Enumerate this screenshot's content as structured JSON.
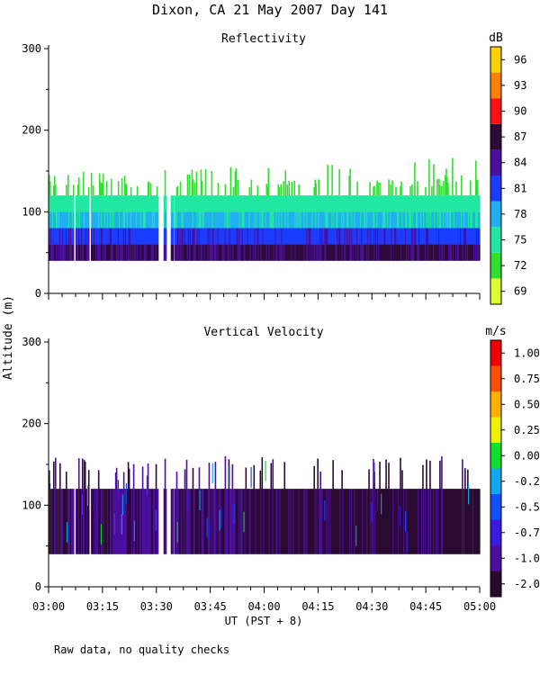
{
  "title": "Dixon, CA 21 May 2007  Day 141",
  "ylabel": "Altitude (m)",
  "xlabel": "UT  (PST + 8)",
  "footnote": "Raw data, no quality checks",
  "x_ticks": [
    "03:00",
    "03:15",
    "03:30",
    "03:45",
    "04:00",
    "04:15",
    "04:30",
    "04:45",
    "05:00"
  ],
  "x_range_minutes": [
    0,
    120
  ],
  "data_gaps_minutes": [
    [
      7.0,
      7.4
    ],
    [
      11.2,
      11.6
    ],
    [
      30.5,
      32.0
    ],
    [
      32.6,
      34.0
    ],
    [
      34.6,
      35.0
    ]
  ],
  "chart_data": [
    {
      "type": "heatmap",
      "title": "Reflectivity",
      "colorbar_unit": "dB",
      "ylim": [
        0,
        300
      ],
      "y_ticks": [
        "0",
        "100",
        "200",
        "300"
      ],
      "colorbar_labels": [
        "69",
        "72",
        "75",
        "78",
        "81",
        "84",
        "87",
        "90",
        "93",
        "96"
      ],
      "colorbar_colors": [
        "#e0ff30",
        "#30e030",
        "#20e8a0",
        "#20b0f0",
        "#1a3cff",
        "#4b0e9e",
        "#2d0a3a",
        "#ff1010",
        "#ff8000",
        "#ffd000"
      ],
      "layers": [
        {
          "z_min_m": 40,
          "z_max_m": 60,
          "value_dB": 84,
          "color_index": 5
        },
        {
          "z_min_m": 60,
          "z_max_m": 80,
          "value_dB": 81,
          "color_index": 4
        },
        {
          "z_min_m": 80,
          "z_max_m": 100,
          "value_dB": 78,
          "color_index": 3
        },
        {
          "z_min_m": 100,
          "z_max_m": 120,
          "value_dB": 75,
          "color_index": 2
        },
        {
          "z_min_m": 120,
          "z_max_m": 160,
          "value_dB": 72,
          "color_index": 1
        }
      ]
    },
    {
      "type": "heatmap",
      "title": "Vertical Velocity",
      "colorbar_unit": "m/s",
      "ylim": [
        0,
        300
      ],
      "y_ticks": [
        "0",
        "100",
        "200",
        "300"
      ],
      "colorbar_labels": [
        "-2.00",
        "-1.00",
        "-0.75",
        "-0.50",
        "-0.25",
        "0.00",
        "0.25",
        "0.50",
        "0.75",
        "1.00"
      ],
      "colorbar_colors": [
        "#2a0a30",
        "#4b0e9e",
        "#3a1ae0",
        "#1050ff",
        "#10a8f0",
        "#10e030",
        "#f0f000",
        "#ffb000",
        "#ff5000",
        "#f00000"
      ],
      "layers": [
        {
          "z_min_m": 40,
          "z_max_m": 120,
          "value_ms": -1.5,
          "color_index": 0
        },
        {
          "z_min_m": 40,
          "z_max_m": 120,
          "value_ms": -0.9,
          "color_index": 1
        },
        {
          "z_min_m": 120,
          "z_max_m": 160,
          "value_ms": -0.6,
          "color_index": 2
        }
      ]
    }
  ]
}
